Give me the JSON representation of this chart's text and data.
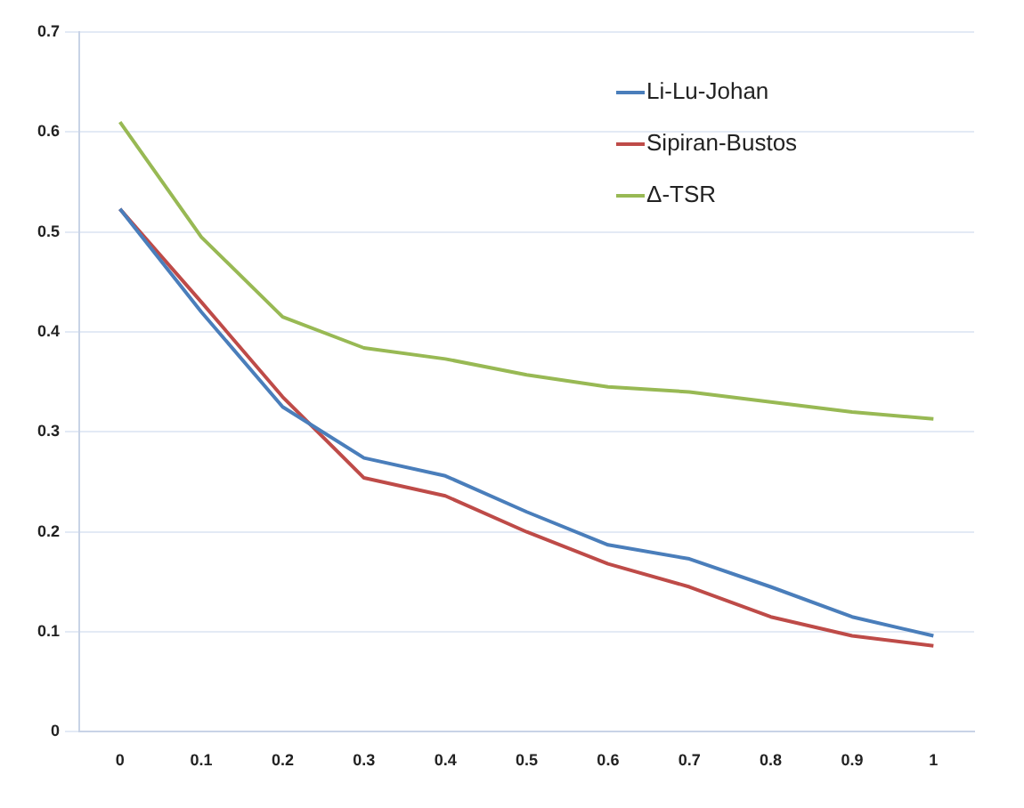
{
  "chart_data": {
    "type": "line",
    "categories": [
      "0",
      "0.1",
      "0.2",
      "0.3",
      "0.4",
      "0.5",
      "0.6",
      "0.7",
      "0.8",
      "0.9",
      "1"
    ],
    "series": [
      {
        "name": "Li-Lu-Johan",
        "color": "#4a7ebb",
        "values": [
          0.523,
          0.42,
          0.325,
          0.274,
          0.256,
          0.22,
          0.187,
          0.173,
          0.145,
          0.115,
          0.096
        ]
      },
      {
        "name": "Sipiran-Bustos",
        "color": "#be4b48",
        "values": [
          0.523,
          0.43,
          0.335,
          0.254,
          0.236,
          0.2,
          0.168,
          0.145,
          0.115,
          0.096,
          0.086
        ]
      },
      {
        "name": "Δ-TSR",
        "color": "#98b954",
        "values": [
          0.61,
          0.495,
          0.415,
          0.384,
          0.373,
          0.357,
          0.345,
          0.34,
          0.33,
          0.32,
          0.313
        ]
      }
    ],
    "ylim": [
      0,
      0.7
    ],
    "yticks": [
      0,
      0.1,
      0.2,
      0.3,
      0.4,
      0.5,
      0.6,
      0.7
    ],
    "grid": "y",
    "legend": "top right",
    "marker": "none",
    "line_style": "solid"
  }
}
